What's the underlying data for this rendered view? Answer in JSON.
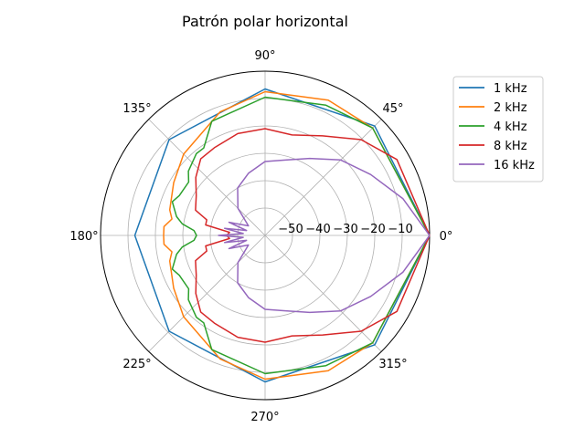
{
  "chart_data": {
    "type": "polar-line",
    "title": "Patrón polar horizontal",
    "angle_unit": "degrees",
    "angle_ticks": [
      0,
      45,
      90,
      135,
      180,
      225,
      270,
      315
    ],
    "angle_tick_labels": [
      "0°",
      "45°",
      "90°",
      "135°",
      "180°",
      "225°",
      "270°",
      "315°"
    ],
    "rlim": [
      -60,
      0
    ],
    "radial_ticks": [
      -50,
      -40,
      -30,
      -20,
      -10
    ],
    "radial_tick_labels": [
      "−50",
      "−40",
      "−30",
      "−20",
      "−10"
    ],
    "grid": true,
    "legend_position": "upper right, outside plot",
    "series": [
      {
        "name": "1 kHz",
        "color": "#1f77b4",
        "angles": [
          0,
          45,
          90,
          135,
          180,
          225,
          270,
          315
        ],
        "values": [
          0,
          -3.5,
          -6.5,
          -10.5,
          -12.5,
          -10.5,
          -6.5,
          -3.5
        ]
      },
      {
        "name": "2 kHz",
        "color": "#ff7f0e",
        "angles": [
          0,
          45,
          65,
          90,
          110,
          135,
          150,
          165,
          170,
          175,
          180,
          185,
          190,
          195,
          210,
          225,
          250,
          270,
          295,
          315
        ],
        "values": [
          0,
          -4.5,
          -5.5,
          -7.5,
          -12,
          -18,
          -21.5,
          -24,
          -25.5,
          -23,
          -23,
          -23,
          -25.5,
          -24,
          -21.5,
          -18,
          -12,
          -7.5,
          -5.5,
          -4.5
        ]
      },
      {
        "name": "4 kHz",
        "color": "#2ca02c",
        "angles": [
          0,
          45,
          65,
          90,
          115,
          125,
          130,
          140,
          145,
          155,
          160,
          165,
          168,
          172,
          176,
          180,
          184,
          188,
          192,
          195,
          200,
          205,
          215,
          220,
          230,
          235,
          245,
          270,
          295,
          315
        ],
        "values": [
          0,
          -4.5,
          -7.5,
          -9.5,
          -14,
          -21,
          -21,
          -23.5,
          -26,
          -25.5,
          -24,
          -26,
          -27,
          -29.5,
          -34,
          -35,
          -34,
          -29.5,
          -27,
          -26,
          -24,
          -25.5,
          -26,
          -23.5,
          -21,
          -21,
          -14,
          -9.5,
          -7.5,
          -4.5
        ]
      },
      {
        "name": "8 kHz",
        "color": "#d62728",
        "angles": [
          0,
          30,
          45,
          60,
          75,
          90,
          105,
          120,
          130,
          140,
          150,
          160,
          165,
          170,
          175,
          180,
          185,
          190,
          195,
          200,
          210,
          220,
          230,
          240,
          255,
          270,
          285,
          300,
          315,
          330
        ],
        "values": [
          0,
          -4.5,
          -10.5,
          -18,
          -22,
          -21,
          -21.5,
          -23,
          -23.5,
          -27,
          -31,
          -33,
          -38,
          -38,
          -47,
          -46,
          -47,
          -38,
          -38,
          -33,
          -31,
          -27,
          -23.5,
          -23,
          -21.5,
          -21,
          -22,
          -18,
          -10.5,
          -4.5
        ]
      },
      {
        "name": "16 kHz",
        "color": "#9467bd",
        "angles": [
          0,
          15,
          30,
          45,
          60,
          75,
          90,
          105,
          120,
          135,
          150,
          160,
          165,
          170,
          175,
          180,
          185,
          190,
          195,
          200,
          210,
          225,
          240,
          255,
          270,
          285,
          300,
          315,
          330,
          345
        ],
        "values": [
          0,
          -8,
          -15.5,
          -21,
          -27.5,
          -31.5,
          -33,
          -36.5,
          -40,
          -46,
          -53,
          -46,
          -53,
          -45,
          -52,
          -43,
          -52,
          -45,
          -53,
          -46,
          -53,
          -46,
          -40,
          -36.5,
          -33,
          -31.5,
          -27.5,
          -21,
          -15.5,
          -8
        ]
      }
    ]
  }
}
